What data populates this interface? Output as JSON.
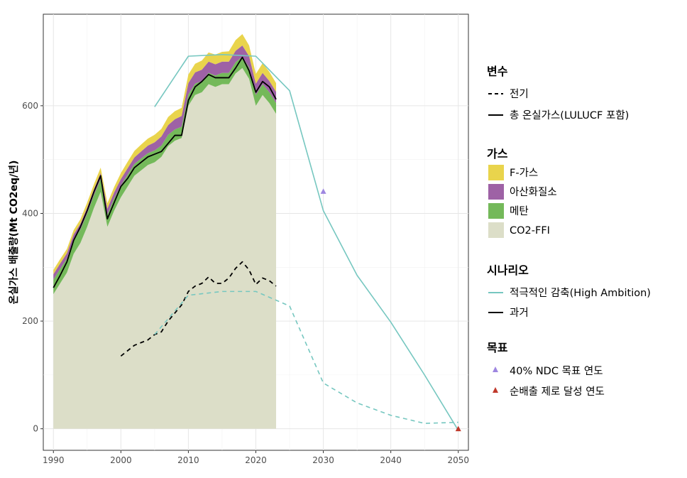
{
  "chart_data": {
    "type": "area",
    "title": "",
    "xlabel": "",
    "ylabel": "온실가스 배출량(Mt CO2eq/년)",
    "xlim": [
      1988.5,
      2051.5
    ],
    "ylim": [
      -40,
      770
    ],
    "x_ticks": [
      1990,
      2000,
      2010,
      2020,
      2030,
      2040,
      2050
    ],
    "y_ticks": [
      0,
      200,
      400,
      600
    ],
    "grid": true,
    "legend_position": "right",
    "area_years": [
      1990,
      1991,
      1992,
      1993,
      1994,
      1995,
      1996,
      1997,
      1998,
      1999,
      2000,
      2001,
      2002,
      2003,
      2004,
      2005,
      2006,
      2007,
      2008,
      2009,
      2010,
      2011,
      2012,
      2013,
      2014,
      2015,
      2016,
      2017,
      2018,
      2019,
      2020,
      2021,
      2022,
      2023
    ],
    "area_series": [
      {
        "name": "CO2-FFI",
        "color": "#dcdec8",
        "values": [
          250,
          270,
          290,
          325,
          345,
          375,
          410,
          440,
          375,
          405,
          430,
          450,
          470,
          480,
          490,
          495,
          505,
          525,
          535,
          540,
          600,
          620,
          625,
          640,
          635,
          640,
          640,
          660,
          670,
          650,
          600,
          620,
          605,
          585
        ]
      },
      {
        "name": "메탄",
        "color": "#74b95a",
        "values": [
          27,
          27,
          26,
          26,
          25,
          25,
          24,
          24,
          23,
          23,
          22,
          22,
          22,
          22,
          22,
          22,
          21,
          21,
          21,
          21,
          21,
          21,
          21,
          21,
          21,
          21,
          21,
          21,
          21,
          21,
          20,
          20,
          20,
          20
        ]
      },
      {
        "name": "아산화질소",
        "color": "#9e62a5",
        "values": [
          10,
          10,
          10,
          10,
          11,
          11,
          11,
          11,
          11,
          11,
          12,
          12,
          12,
          13,
          14,
          15,
          17,
          18,
          19,
          20,
          21,
          21,
          21,
          21,
          21,
          21,
          21,
          21,
          21,
          21,
          21,
          21,
          21,
          21
        ]
      },
      {
        "name": "F-가스",
        "color": "#e9d44c",
        "values": [
          8,
          8,
          8,
          8,
          8,
          9,
          9,
          10,
          10,
          10,
          11,
          12,
          12,
          13,
          13,
          14,
          14,
          15,
          15,
          15,
          16,
          16,
          17,
          17,
          18,
          18,
          19,
          20,
          21,
          20,
          18,
          18,
          17,
          16
        ]
      }
    ],
    "line_series": [
      {
        "name": "과거 · 총 온실가스(LULUCF 포함)",
        "color": "#000000",
        "dash": "solid",
        "x": [
          1990,
          1991,
          1992,
          1993,
          1994,
          1995,
          1996,
          1997,
          1998,
          1999,
          2000,
          2001,
          2002,
          2003,
          2004,
          2005,
          2006,
          2007,
          2008,
          2009,
          2010,
          2011,
          2012,
          2013,
          2014,
          2015,
          2016,
          2017,
          2018,
          2019,
          2020,
          2021,
          2022,
          2023
        ],
        "y": [
          262,
          285,
          310,
          350,
          375,
          405,
          440,
          470,
          390,
          420,
          450,
          465,
          485,
          495,
          505,
          510,
          515,
          530,
          545,
          545,
          610,
          635,
          645,
          658,
          652,
          652,
          652,
          670,
          690,
          665,
          625,
          645,
          635,
          612
        ]
      },
      {
        "name": "과거 · 전기",
        "color": "#000000",
        "dash": "dashed",
        "x": [
          2000,
          2001,
          2002,
          2003,
          2004,
          2005,
          2006,
          2007,
          2008,
          2009,
          2010,
          2011,
          2012,
          2013,
          2014,
          2015,
          2016,
          2017,
          2018,
          2019,
          2020,
          2021,
          2022,
          2023
        ],
        "y": [
          135,
          145,
          155,
          160,
          165,
          175,
          180,
          200,
          215,
          230,
          255,
          265,
          270,
          282,
          270,
          270,
          280,
          298,
          310,
          295,
          268,
          280,
          275,
          265
        ]
      },
      {
        "name": "적극적인 감축(High Ambition) · 총 온실가스(LULUCF 포함)",
        "color": "#76c7c0",
        "dash": "solid",
        "x": [
          2005,
          2010,
          2015,
          2020,
          2025,
          2030,
          2035,
          2040,
          2045,
          2050
        ],
        "y": [
          598,
          692,
          695,
          692,
          628,
          405,
          285,
          198,
          100,
          -3
        ]
      },
      {
        "name": "적극적인 감축(High Ambition) · 전기",
        "color": "#76c7c0",
        "dash": "dashed",
        "x": [
          2005,
          2010,
          2015,
          2020,
          2025,
          2030,
          2035,
          2040,
          2045,
          2050
        ],
        "y": [
          175,
          248,
          255,
          255,
          228,
          85,
          48,
          25,
          10,
          12
        ]
      }
    ],
    "points": [
      {
        "name": "40% NDC 목표 연도",
        "color": "#9e86e0",
        "x": 2030,
        "y": 441
      },
      {
        "name": "순배출 제로 달성 연도",
        "color": "#c0392b",
        "x": 2050,
        "y": 0
      }
    ]
  },
  "legend": {
    "variable": {
      "title": "변수",
      "items": [
        "전기",
        "총 온실가스(LULUCF 포함)"
      ]
    },
    "gas": {
      "title": "가스",
      "items": [
        "F-가스",
        "아산화질소",
        "메탄",
        "CO2-FFI"
      ],
      "colors": [
        "#e9d44c",
        "#9e62a5",
        "#74b95a",
        "#dcdec8"
      ]
    },
    "scenario": {
      "title": "시나리오",
      "items": [
        "적극적인 감축(High Ambition)",
        "과거"
      ],
      "colors": [
        "#76c7c0",
        "#000000"
      ]
    },
    "target": {
      "title": "목표",
      "items": [
        "40% NDC 목표 연도",
        "순배출 제로 달성 연도"
      ],
      "colors": [
        "#9e86e0",
        "#c0392b"
      ]
    }
  }
}
